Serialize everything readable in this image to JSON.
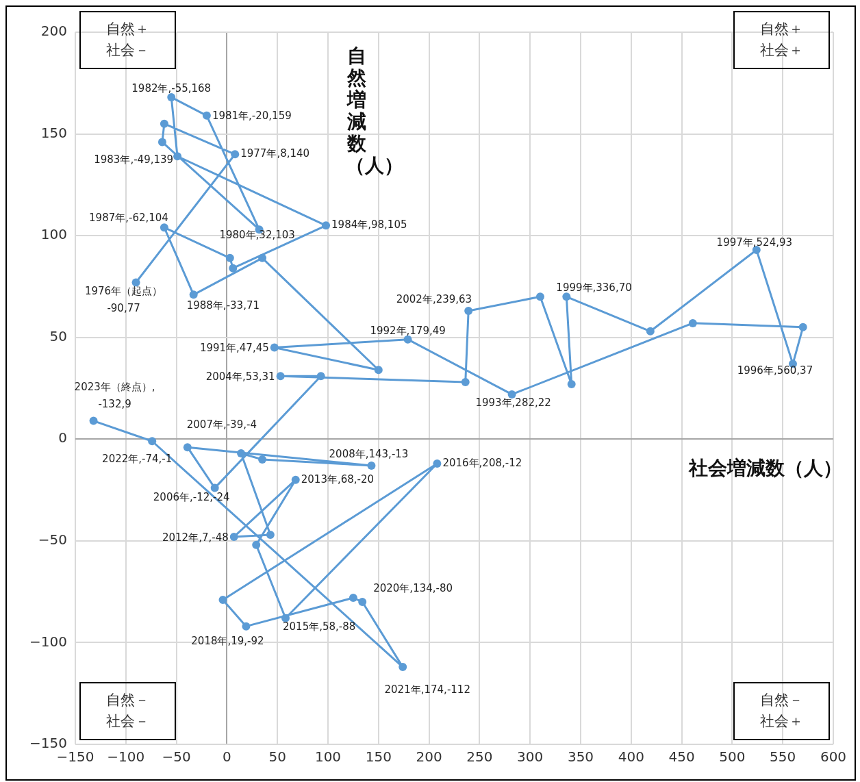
{
  "chart_data": {
    "type": "line",
    "xlabel": "社会増減数（人）",
    "ylabel": "自然増減数（人）",
    "x": [
      -90,
      8,
      -62,
      -64,
      32,
      -20,
      -55,
      -49,
      98,
      6,
      3,
      -62,
      -33,
      35,
      150,
      47,
      179,
      282,
      461,
      570,
      560,
      524,
      419,
      336,
      341,
      310,
      239,
      236,
      53,
      93,
      -12,
      -39,
      143,
      35,
      14,
      43,
      7,
      68,
      29,
      58,
      208,
      -4,
      19,
      125,
      134,
      174,
      -74,
      -132
    ],
    "values": [
      77,
      140,
      155,
      146,
      103,
      159,
      168,
      139,
      105,
      84,
      89,
      104,
      71,
      89,
      34,
      45,
      49,
      22,
      57,
      55,
      37,
      93,
      53,
      70,
      27,
      70,
      63,
      28,
      31,
      31,
      -24,
      -4,
      -13,
      -10,
      -7,
      -47,
      -48,
      -20,
      -52,
      -88,
      -12,
      -79,
      -92,
      -78,
      -80,
      -112,
      -1,
      9
    ],
    "color": "#5b9bd5",
    "xlim": [
      -150,
      600
    ],
    "ylim": [
      -150,
      200
    ],
    "xticks": [
      -150,
      -100,
      -50,
      0,
      50,
      100,
      150,
      200,
      250,
      300,
      350,
      400,
      450,
      500,
      550,
      600
    ],
    "yticks": [
      -150,
      -100,
      -50,
      0,
      50,
      100,
      150,
      200
    ],
    "grid": true,
    "marker": "circle",
    "line_style": "solid",
    "annotations": [
      {
        "text": "1976年（起点）\n-90,77",
        "x": -90,
        "y": 77
      },
      {
        "text": "1977年,8,140",
        "x": 8,
        "y": 140
      },
      {
        "text": "1980年,32,103",
        "x": 32,
        "y": 103
      },
      {
        "text": "1981年,-20,159",
        "x": -20,
        "y": 159
      },
      {
        "text": "1982年,-55,168",
        "x": -55,
        "y": 168
      },
      {
        "text": "1983年,-49,139",
        "x": -49,
        "y": 139
      },
      {
        "text": "1984年,98,105",
        "x": 98,
        "y": 105
      },
      {
        "text": "1987年,-62,104",
        "x": -62,
        "y": 104
      },
      {
        "text": "1988年,-33,71",
        "x": -33,
        "y": 71
      },
      {
        "text": "1991年,47,45",
        "x": 47,
        "y": 45
      },
      {
        "text": "1992年,179,49",
        "x": 179,
        "y": 49
      },
      {
        "text": "1993年,282,22",
        "x": 282,
        "y": 22
      },
      {
        "text": "1996年,560,37",
        "x": 560,
        "y": 37
      },
      {
        "text": "1997年,524,93",
        "x": 524,
        "y": 93
      },
      {
        "text": "1999年,336,70",
        "x": 336,
        "y": 70
      },
      {
        "text": "2002年,239,63",
        "x": 239,
        "y": 63
      },
      {
        "text": "2004年,53,31",
        "x": 53,
        "y": 31
      },
      {
        "text": "2006年,-12,-24",
        "x": -12,
        "y": -24
      },
      {
        "text": "2007年,-39,-4",
        "x": -39,
        "y": -4
      },
      {
        "text": "2008年,143,-13",
        "x": 143,
        "y": -13
      },
      {
        "text": "2012年,7,-48",
        "x": 7,
        "y": -48
      },
      {
        "text": "2013年,68,-20",
        "x": 68,
        "y": -20
      },
      {
        "text": "2015年,58,-88",
        "x": 58,
        "y": -88
      },
      {
        "text": "2016年,208,-12",
        "x": 208,
        "y": -12
      },
      {
        "text": "2018年,19,-92",
        "x": 19,
        "y": -92
      },
      {
        "text": "2020年,134,-80",
        "x": 134,
        "y": -80
      },
      {
        "text": "2021年,174,-112",
        "x": 174,
        "y": -112
      },
      {
        "text": "2022年,-74,-1",
        "x": -74,
        "y": -1
      },
      {
        "text": "2023年（終点）,\n-132,9",
        "x": -132,
        "y": 9
      },
      "自然＋社会－",
      "自然＋社会＋",
      "自然－社会－",
      "自然－社会＋"
    ]
  }
}
